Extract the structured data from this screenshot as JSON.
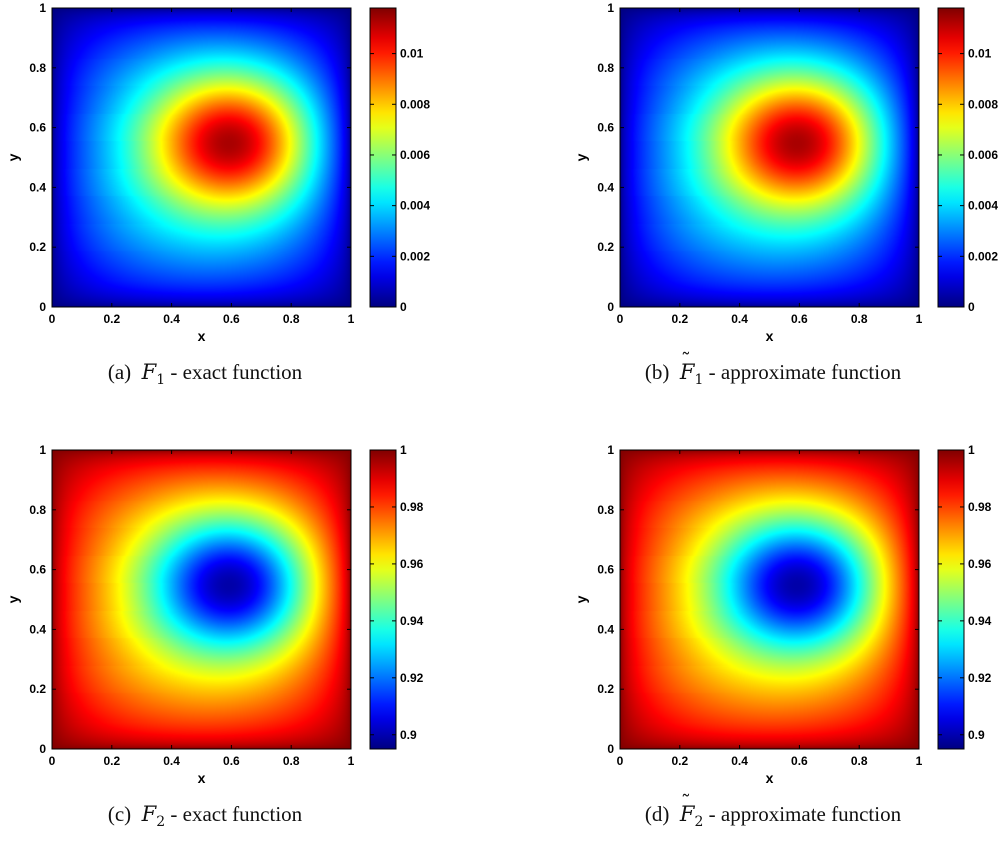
{
  "colormap": "jet",
  "chart_data": [
    {
      "type": "heatmap",
      "caption": {
        "label": "(a)",
        "symbol": "F",
        "subscript": "1",
        "tilde": false,
        "text": "- exact function"
      },
      "xlabel": "x",
      "ylabel": "y",
      "xlim": [
        0,
        1
      ],
      "ylim": [
        0,
        1
      ],
      "xticks": [
        "0",
        "0.2",
        "0.4",
        "0.6",
        "0.8",
        "1"
      ],
      "yticks": [
        "0",
        "0.2",
        "0.4",
        "0.6",
        "0.8",
        "1"
      ],
      "colorbar": {
        "range": [
          0,
          0.0118
        ],
        "ticks": [
          "0",
          "0.002",
          "0.004",
          "0.006",
          "0.008",
          "0.01"
        ],
        "tick_values": [
          0,
          0.002,
          0.004,
          0.006,
          0.008,
          0.01
        ]
      },
      "pattern": "bump",
      "peak": {
        "x": 0.63,
        "y": 0.56,
        "value": 0.0118
      },
      "boundary_value": 0
    },
    {
      "type": "heatmap",
      "caption": {
        "label": "(b)",
        "symbol": "F",
        "subscript": "1",
        "tilde": true,
        "text": "- approximate function"
      },
      "xlabel": "x",
      "ylabel": "y",
      "xlim": [
        0,
        1
      ],
      "ylim": [
        0,
        1
      ],
      "xticks": [
        "0",
        "0.2",
        "0.4",
        "0.6",
        "0.8",
        "1"
      ],
      "yticks": [
        "0",
        "0.2",
        "0.4",
        "0.6",
        "0.8",
        "1"
      ],
      "colorbar": {
        "range": [
          0,
          0.0118
        ],
        "ticks": [
          "0",
          "0.002",
          "0.004",
          "0.006",
          "0.008",
          "0.01"
        ],
        "tick_values": [
          0,
          0.002,
          0.004,
          0.006,
          0.008,
          0.01
        ]
      },
      "pattern": "bump",
      "peak": {
        "x": 0.63,
        "y": 0.56,
        "value": 0.0118
      },
      "boundary_value": 0
    },
    {
      "type": "heatmap",
      "caption": {
        "label": "(c)",
        "symbol": "F",
        "subscript": "2",
        "tilde": false,
        "text": "- exact function"
      },
      "xlabel": "x",
      "ylabel": "y",
      "xlim": [
        0,
        1
      ],
      "ylim": [
        0,
        1
      ],
      "xticks": [
        "0",
        "0.2",
        "0.4",
        "0.6",
        "0.8",
        "1"
      ],
      "yticks": [
        "0",
        "0.2",
        "0.4",
        "0.6",
        "0.8",
        "1"
      ],
      "colorbar": {
        "range": [
          0.895,
          1.0
        ],
        "ticks": [
          "0.9",
          "0.92",
          "0.94",
          "0.96",
          "0.98",
          "1"
        ],
        "tick_values": [
          0.9,
          0.92,
          0.94,
          0.96,
          0.98,
          1.0
        ]
      },
      "pattern": "well",
      "min": {
        "x": 0.63,
        "y": 0.56,
        "value": 0.895
      },
      "boundary_value": 1.0
    },
    {
      "type": "heatmap",
      "caption": {
        "label": "(d)",
        "symbol": "F",
        "subscript": "2",
        "tilde": true,
        "text": "- approximate function"
      },
      "xlabel": "x",
      "ylabel": "y",
      "xlim": [
        0,
        1
      ],
      "ylim": [
        0,
        1
      ],
      "xticks": [
        "0",
        "0.2",
        "0.4",
        "0.6",
        "0.8",
        "1"
      ],
      "yticks": [
        "0",
        "0.2",
        "0.4",
        "0.6",
        "0.8",
        "1"
      ],
      "colorbar": {
        "range": [
          0.895,
          1.0
        ],
        "ticks": [
          "0.9",
          "0.92",
          "0.94",
          "0.96",
          "0.98",
          "1"
        ],
        "tick_values": [
          0.9,
          0.92,
          0.94,
          0.96,
          0.98,
          1.0
        ]
      },
      "pattern": "well",
      "min": {
        "x": 0.63,
        "y": 0.56,
        "value": 0.895
      },
      "boundary_value": 1.0
    }
  ]
}
